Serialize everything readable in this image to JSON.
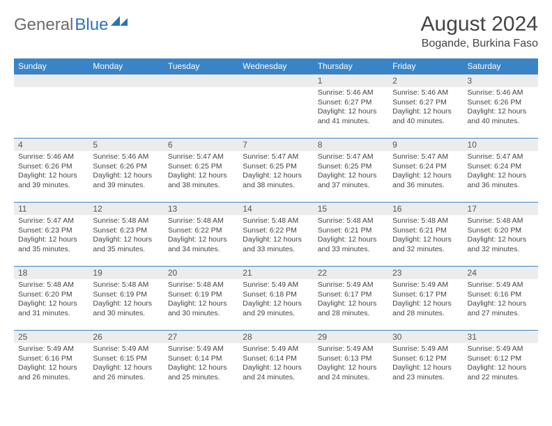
{
  "brand": {
    "name_gray": "General",
    "name_blue": "Blue"
  },
  "title": "August 2024",
  "location": "Bogande, Burkina Faso",
  "colors": {
    "header_bg": "#3a84c6",
    "header_text": "#ffffff",
    "daynum_bg": "#ececec",
    "border": "#3a84c6",
    "text": "#444444",
    "brand_gray": "#6b6b6b",
    "brand_blue": "#2b73b8"
  },
  "weekdays": [
    "Sunday",
    "Monday",
    "Tuesday",
    "Wednesday",
    "Thursday",
    "Friday",
    "Saturday"
  ],
  "layout": {
    "rows": 5,
    "cols": 7,
    "first_day_col": 4,
    "days_in_month": 31
  },
  "days": {
    "1": {
      "sunrise": "5:46 AM",
      "sunset": "6:27 PM",
      "daylight": "12 hours and 41 minutes."
    },
    "2": {
      "sunrise": "5:46 AM",
      "sunset": "6:27 PM",
      "daylight": "12 hours and 40 minutes."
    },
    "3": {
      "sunrise": "5:46 AM",
      "sunset": "6:26 PM",
      "daylight": "12 hours and 40 minutes."
    },
    "4": {
      "sunrise": "5:46 AM",
      "sunset": "6:26 PM",
      "daylight": "12 hours and 39 minutes."
    },
    "5": {
      "sunrise": "5:46 AM",
      "sunset": "6:26 PM",
      "daylight": "12 hours and 39 minutes."
    },
    "6": {
      "sunrise": "5:47 AM",
      "sunset": "6:25 PM",
      "daylight": "12 hours and 38 minutes."
    },
    "7": {
      "sunrise": "5:47 AM",
      "sunset": "6:25 PM",
      "daylight": "12 hours and 38 minutes."
    },
    "8": {
      "sunrise": "5:47 AM",
      "sunset": "6:25 PM",
      "daylight": "12 hours and 37 minutes."
    },
    "9": {
      "sunrise": "5:47 AM",
      "sunset": "6:24 PM",
      "daylight": "12 hours and 36 minutes."
    },
    "10": {
      "sunrise": "5:47 AM",
      "sunset": "6:24 PM",
      "daylight": "12 hours and 36 minutes."
    },
    "11": {
      "sunrise": "5:47 AM",
      "sunset": "6:23 PM",
      "daylight": "12 hours and 35 minutes."
    },
    "12": {
      "sunrise": "5:48 AM",
      "sunset": "6:23 PM",
      "daylight": "12 hours and 35 minutes."
    },
    "13": {
      "sunrise": "5:48 AM",
      "sunset": "6:22 PM",
      "daylight": "12 hours and 34 minutes."
    },
    "14": {
      "sunrise": "5:48 AM",
      "sunset": "6:22 PM",
      "daylight": "12 hours and 33 minutes."
    },
    "15": {
      "sunrise": "5:48 AM",
      "sunset": "6:21 PM",
      "daylight": "12 hours and 33 minutes."
    },
    "16": {
      "sunrise": "5:48 AM",
      "sunset": "6:21 PM",
      "daylight": "12 hours and 32 minutes."
    },
    "17": {
      "sunrise": "5:48 AM",
      "sunset": "6:20 PM",
      "daylight": "12 hours and 32 minutes."
    },
    "18": {
      "sunrise": "5:48 AM",
      "sunset": "6:20 PM",
      "daylight": "12 hours and 31 minutes."
    },
    "19": {
      "sunrise": "5:48 AM",
      "sunset": "6:19 PM",
      "daylight": "12 hours and 30 minutes."
    },
    "20": {
      "sunrise": "5:48 AM",
      "sunset": "6:19 PM",
      "daylight": "12 hours and 30 minutes."
    },
    "21": {
      "sunrise": "5:49 AM",
      "sunset": "6:18 PM",
      "daylight": "12 hours and 29 minutes."
    },
    "22": {
      "sunrise": "5:49 AM",
      "sunset": "6:17 PM",
      "daylight": "12 hours and 28 minutes."
    },
    "23": {
      "sunrise": "5:49 AM",
      "sunset": "6:17 PM",
      "daylight": "12 hours and 28 minutes."
    },
    "24": {
      "sunrise": "5:49 AM",
      "sunset": "6:16 PM",
      "daylight": "12 hours and 27 minutes."
    },
    "25": {
      "sunrise": "5:49 AM",
      "sunset": "6:16 PM",
      "daylight": "12 hours and 26 minutes."
    },
    "26": {
      "sunrise": "5:49 AM",
      "sunset": "6:15 PM",
      "daylight": "12 hours and 26 minutes."
    },
    "27": {
      "sunrise": "5:49 AM",
      "sunset": "6:14 PM",
      "daylight": "12 hours and 25 minutes."
    },
    "28": {
      "sunrise": "5:49 AM",
      "sunset": "6:14 PM",
      "daylight": "12 hours and 24 minutes."
    },
    "29": {
      "sunrise": "5:49 AM",
      "sunset": "6:13 PM",
      "daylight": "12 hours and 24 minutes."
    },
    "30": {
      "sunrise": "5:49 AM",
      "sunset": "6:12 PM",
      "daylight": "12 hours and 23 minutes."
    },
    "31": {
      "sunrise": "5:49 AM",
      "sunset": "6:12 PM",
      "daylight": "12 hours and 22 minutes."
    }
  },
  "labels": {
    "sunrise": "Sunrise:",
    "sunset": "Sunset:",
    "daylight": "Daylight:"
  }
}
